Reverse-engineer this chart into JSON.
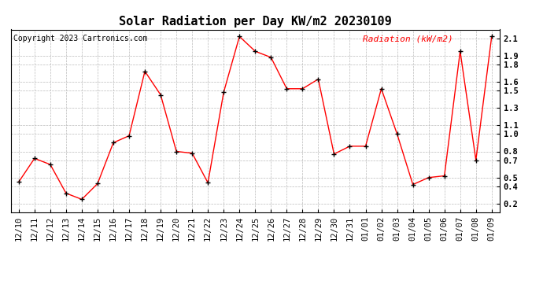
{
  "title": "Solar Radiation per Day KW/m2 20230109",
  "copyright_text": "Copyright 2023 Cartronics.com",
  "legend_label": "Radiation (kW/m2)",
  "labels": [
    "12/10",
    "12/11",
    "12/12",
    "12/13",
    "12/14",
    "12/15",
    "12/16",
    "12/17",
    "12/18",
    "12/19",
    "12/20",
    "12/21",
    "12/22",
    "12/23",
    "12/24",
    "12/25",
    "12/26",
    "12/27",
    "12/28",
    "12/29",
    "12/30",
    "12/31",
    "01/01",
    "01/02",
    "01/03",
    "01/04",
    "01/05",
    "01/06",
    "01/07",
    "01/08",
    "01/09"
  ],
  "values": [
    0.45,
    0.72,
    0.65,
    0.32,
    0.25,
    0.43,
    0.9,
    0.98,
    1.72,
    1.45,
    0.8,
    0.78,
    0.44,
    1.48,
    2.12,
    1.95,
    1.88,
    1.52,
    1.52,
    1.63,
    0.77,
    0.86,
    0.86,
    1.52,
    1.0,
    0.42,
    0.5,
    0.52,
    1.95,
    0.7,
    2.12
  ],
  "line_color": "red",
  "marker_color": "black",
  "background_color": "#ffffff",
  "grid_color": "#bbbbbb",
  "title_fontsize": 11,
  "copyright_fontsize": 7,
  "legend_fontsize": 8,
  "ylim": [
    0.1,
    2.2
  ],
  "yticks": [
    0.2,
    0.4,
    0.5,
    0.7,
    0.8,
    1.0,
    1.1,
    1.3,
    1.5,
    1.6,
    1.8,
    1.9,
    2.1
  ],
  "tick_label_fontsize": 7.5
}
